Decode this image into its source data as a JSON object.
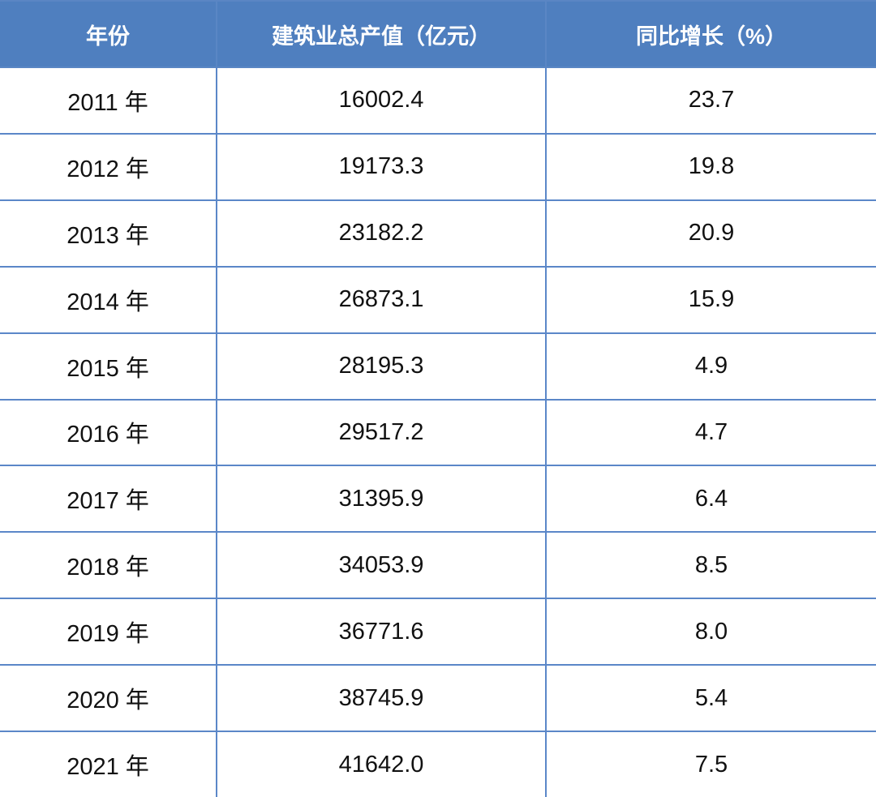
{
  "chart_data": {
    "type": "table",
    "columns": [
      "年份",
      "建筑业总产值（亿元）",
      "同比增长（%）"
    ],
    "rows": [
      [
        "2011 年",
        "16002.4",
        "23.7"
      ],
      [
        "2012 年",
        "19173.3",
        "19.8"
      ],
      [
        "2013 年",
        "23182.2",
        "20.9"
      ],
      [
        "2014 年",
        "26873.1",
        "15.9"
      ],
      [
        "2015 年",
        "28195.3",
        "4.9"
      ],
      [
        "2016 年",
        "29517.2",
        "4.7"
      ],
      [
        "2017 年",
        "31395.9",
        "6.4"
      ],
      [
        "2018 年",
        "34053.9",
        "8.5"
      ],
      [
        "2019 年",
        "36771.6",
        "8.0"
      ],
      [
        "2020 年",
        "38745.9",
        "5.4"
      ],
      [
        "2021 年",
        "41642.0",
        "7.5"
      ]
    ]
  },
  "colors": {
    "header_bg": "#4f7fbf",
    "header_text": "#ffffff",
    "grid_line": "#5b87c8",
    "body_text": "#111111"
  }
}
